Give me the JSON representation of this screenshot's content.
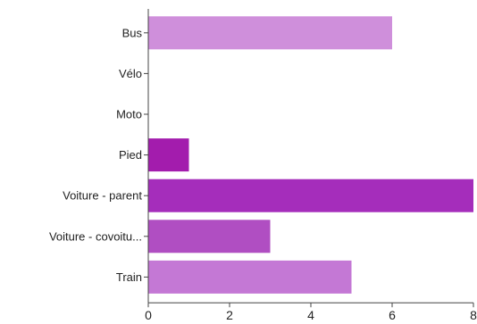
{
  "chart_data": {
    "type": "bar",
    "orientation": "horizontal",
    "categories": [
      "Bus",
      "Vélo",
      "Moto",
      "Pied",
      "Voiture - parent",
      "Voiture - covoitu...",
      "Train"
    ],
    "values": [
      6,
      0,
      0,
      1,
      8,
      3,
      5
    ],
    "colors": [
      "#cf8fdb",
      "#c27fd1",
      "#b86cc9",
      "#a31cad",
      "#a52dbb",
      "#b04ec2",
      "#c478d5"
    ],
    "xlim": [
      0,
      8
    ],
    "xticks": [
      0,
      2,
      4,
      6,
      8
    ],
    "grid": false,
    "legend": "none",
    "title": "",
    "xlabel": "",
    "ylabel": ""
  }
}
